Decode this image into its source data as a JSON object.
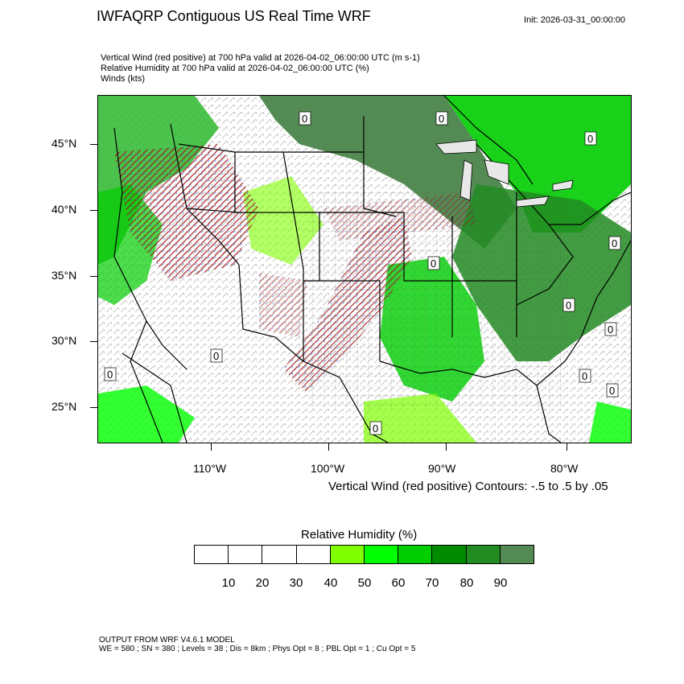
{
  "header": {
    "title": "IWFAQRP Contiguous US Real Time WRF",
    "init": "Init: 2026-03-31_00:00:00"
  },
  "fields": [
    "Vertical Wind (red positive) at 700 hPa valid at 2026-04-02_06:00:00 UTC   (m s-1)",
    "Relative Humidity at 700 hPa valid at 2026-04-02_06:00:00 UTC   (%)",
    "Winds   (kts)"
  ],
  "map": {
    "lat_labels": [
      "45°N",
      "40°N",
      "35°N",
      "30°N",
      "25°N"
    ],
    "lon_labels": [
      "110°W",
      "100°W",
      "90°W",
      "80°W"
    ],
    "contour_labels": [
      "0",
      "0",
      "0",
      "0",
      "0",
      "0",
      "0",
      "0",
      "0",
      "0",
      "0",
      "0"
    ]
  },
  "contour_note": "Vertical Wind (red positive) Contours: -.5 to .5 by .05",
  "legend": {
    "title": "Relative Humidity  (%)",
    "colors": [
      "#ffffff",
      "#ffffff",
      "#ffffff",
      "#ffffff",
      "#7fff00",
      "#00ff00",
      "#00cd00",
      "#008b00",
      "#228b22",
      "#548b54"
    ],
    "labels": [
      "10",
      "20",
      "30",
      "40",
      "50",
      "60",
      "70",
      "80",
      "90"
    ]
  },
  "footer": {
    "line1": "OUTPUT FROM WRF V4.6.1 MODEL",
    "line2": "WE = 580 ; SN = 380 ; Levels = 38 ; Dis = 8km ; Phys Opt = 8 ; PBL Opt = 1 ; Cu Opt = 5"
  }
}
